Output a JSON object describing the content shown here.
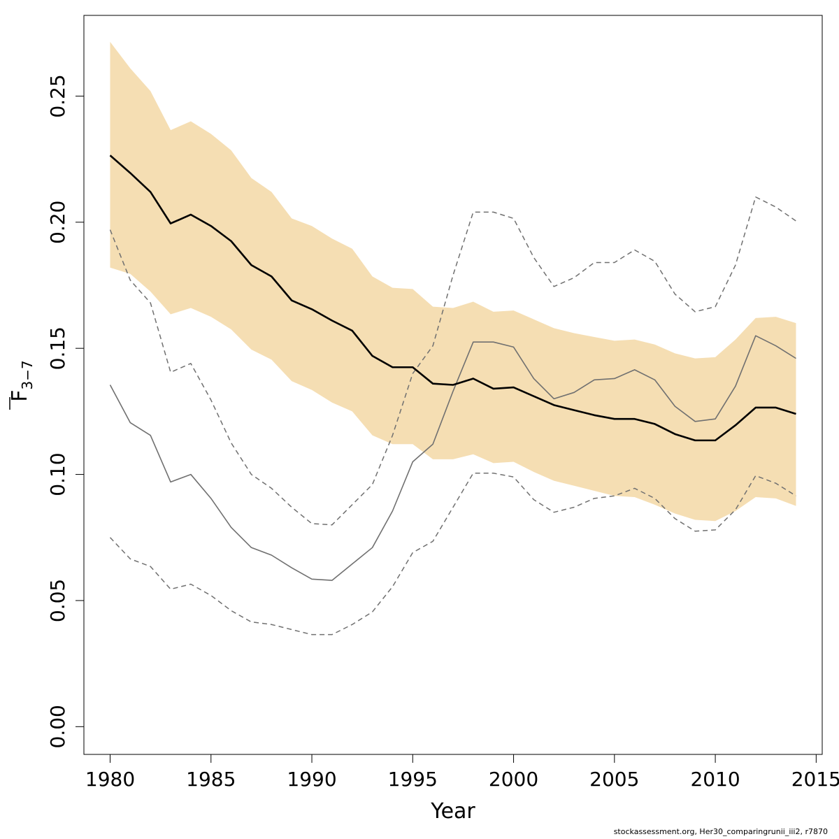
{
  "footer": {
    "text": "stockassessment.org, Her30_comparingrunii_iii2, r7870"
  },
  "chart_data": {
    "type": "line",
    "title": "",
    "xlabel": "Year",
    "ylabel": "F",
    "ylabel_subscript": "3−7",
    "xlim": [
      1978.7,
      2015.3
    ],
    "ylim": [
      -0.011,
      0.282
    ],
    "x_ticks": [
      1980,
      1985,
      1990,
      1995,
      2000,
      2005,
      2010,
      2015
    ],
    "x_tick_labels": [
      "1980",
      "1985",
      "1990",
      "1995",
      "2000",
      "2005",
      "2010",
      "2015"
    ],
    "y_ticks": [
      0.0,
      0.05,
      0.1,
      0.15,
      0.2,
      0.25
    ],
    "y_tick_labels": [
      "0.00",
      "0.05",
      "0.10",
      "0.15",
      "0.20",
      "0.25"
    ],
    "grid": false,
    "legend": "none",
    "colors": {
      "band": "#f5deb3",
      "main": "#000000",
      "comparison": "#707070"
    },
    "x": [
      1980,
      1981,
      1982,
      1983,
      1984,
      1985,
      1986,
      1987,
      1988,
      1989,
      1990,
      1991,
      1992,
      1993,
      1994,
      1995,
      1996,
      1997,
      1998,
      1999,
      2000,
      2001,
      2002,
      2003,
      2004,
      2005,
      2006,
      2007,
      2008,
      2009,
      2010,
      2011,
      2012,
      2013,
      2014
    ],
    "band_upper": [
      0.2715,
      0.261,
      0.252,
      0.2365,
      0.24,
      0.235,
      0.2285,
      0.2175,
      0.212,
      0.2015,
      0.1985,
      0.1935,
      0.1895,
      0.1785,
      0.174,
      0.1735,
      0.1665,
      0.166,
      0.1685,
      0.1645,
      0.165,
      0.1615,
      0.158,
      0.156,
      0.1545,
      0.153,
      0.1535,
      0.1515,
      0.148,
      0.146,
      0.1465,
      0.1535,
      0.162,
      0.1625,
      0.16
    ],
    "band_lower": [
      0.182,
      0.1795,
      0.1725,
      0.1635,
      0.166,
      0.1625,
      0.1575,
      0.1495,
      0.1455,
      0.137,
      0.1335,
      0.1285,
      0.125,
      0.1155,
      0.112,
      0.112,
      0.106,
      0.106,
      0.108,
      0.1045,
      0.105,
      0.101,
      0.0975,
      0.0955,
      0.0935,
      0.0915,
      0.091,
      0.088,
      0.0845,
      0.082,
      0.0815,
      0.0855,
      0.091,
      0.0905,
      0.0875
    ],
    "series": [
      {
        "role": "estimate",
        "style": "solid-thick",
        "values": [
          0.2265,
          0.2195,
          0.212,
          0.1995,
          0.203,
          0.1985,
          0.1925,
          0.183,
          0.1785,
          0.169,
          0.1655,
          0.161,
          0.157,
          0.147,
          0.1425,
          0.1425,
          0.136,
          0.1355,
          0.138,
          0.134,
          0.1345,
          0.131,
          0.1275,
          0.1255,
          0.1235,
          0.122,
          0.122,
          0.12,
          0.116,
          0.1135,
          0.1135,
          0.1195,
          0.1265,
          0.1265,
          0.124
        ]
      },
      {
        "role": "comparison",
        "style": "solid-thin",
        "values": [
          0.1355,
          0.1205,
          0.1155,
          0.097,
          0.1,
          0.0905,
          0.079,
          0.071,
          0.068,
          0.063,
          0.0585,
          0.058,
          0.0645,
          0.071,
          0.0855,
          0.105,
          0.112,
          0.133,
          0.1525,
          0.1525,
          0.1505,
          0.138,
          0.13,
          0.1325,
          0.1375,
          0.138,
          0.1415,
          0.1375,
          0.127,
          0.121,
          0.122,
          0.135,
          0.155,
          0.151,
          0.146
        ]
      },
      {
        "role": "comparison-upper",
        "style": "dashed",
        "values": [
          0.197,
          0.177,
          0.168,
          0.1405,
          0.144,
          0.1295,
          0.1125,
          0.1,
          0.0945,
          0.087,
          0.0805,
          0.08,
          0.088,
          0.096,
          0.1155,
          0.14,
          0.151,
          0.179,
          0.204,
          0.204,
          0.2015,
          0.186,
          0.1745,
          0.178,
          0.184,
          0.184,
          0.189,
          0.1845,
          0.1715,
          0.1645,
          0.1665,
          0.183,
          0.21,
          0.206,
          0.2005
        ]
      },
      {
        "role": "comparison-lower",
        "style": "dashed",
        "values": [
          0.075,
          0.0665,
          0.0635,
          0.0545,
          0.0565,
          0.052,
          0.046,
          0.0415,
          0.0405,
          0.0385,
          0.0365,
          0.0365,
          0.0405,
          0.0455,
          0.0555,
          0.069,
          0.0735,
          0.087,
          0.1005,
          0.1005,
          0.099,
          0.09,
          0.085,
          0.087,
          0.0905,
          0.0915,
          0.0945,
          0.0905,
          0.0825,
          0.0775,
          0.078,
          0.086,
          0.0995,
          0.0965,
          0.0915
        ]
      }
    ]
  }
}
